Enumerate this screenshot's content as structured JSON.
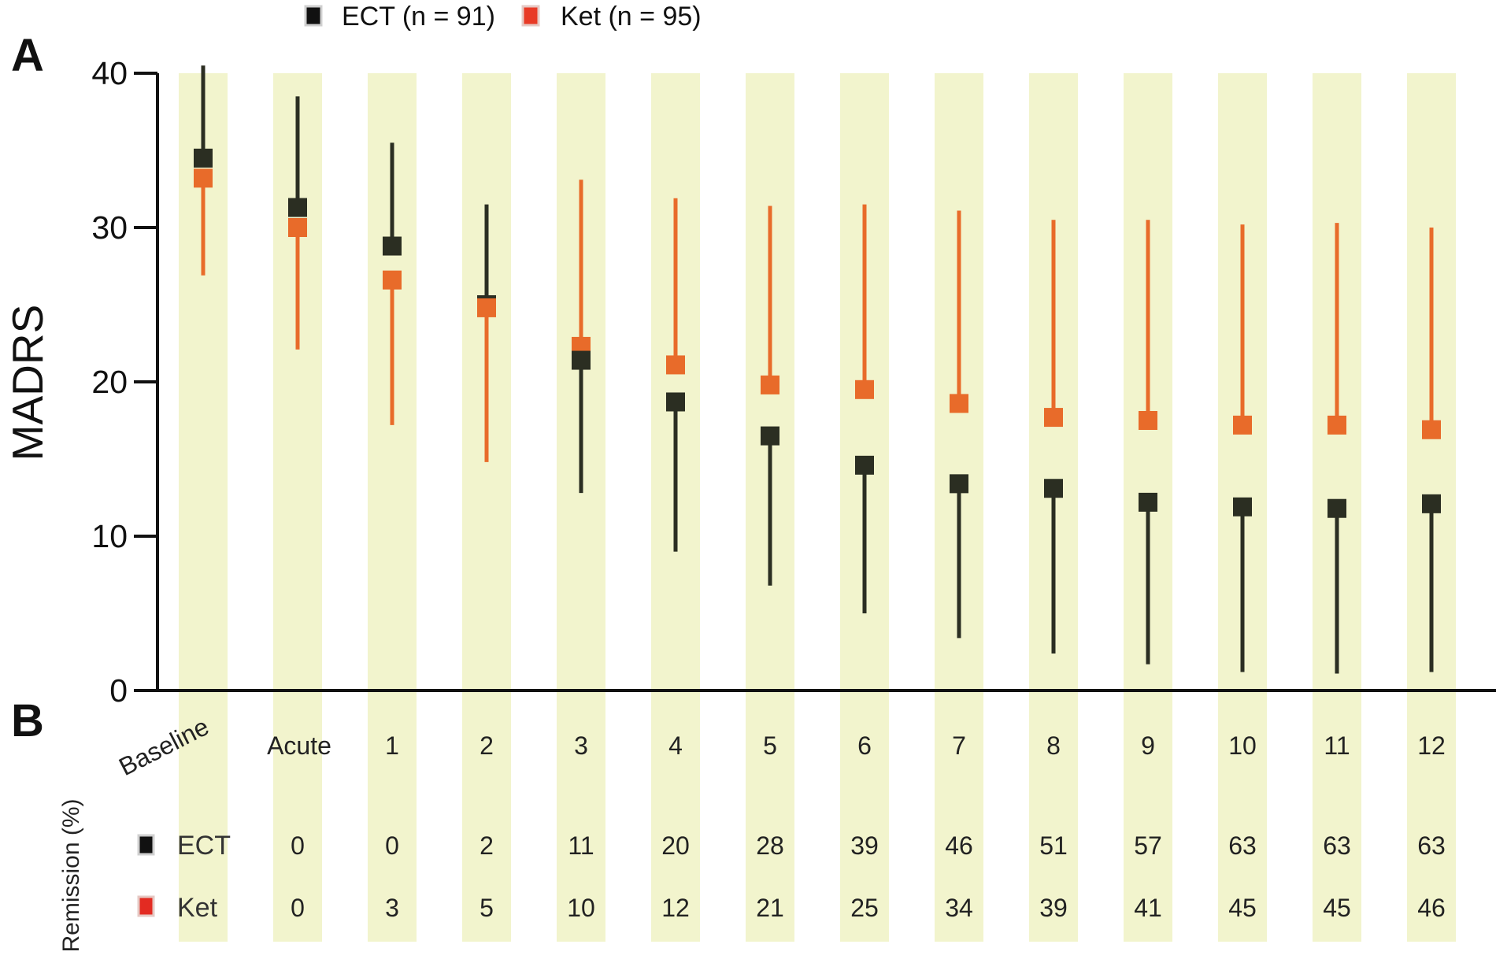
{
  "panels": {
    "a": "A",
    "b": "B"
  },
  "legend": [
    {
      "label": "ECT (n = 91)",
      "color": "#2b2e22"
    },
    {
      "label": "Ket (n = 95)",
      "color": "#e83a26"
    }
  ],
  "chart_data": {
    "type": "scatter",
    "ylabel": "MADRS",
    "ylim": [
      0,
      40
    ],
    "yticks": [
      "0",
      "10",
      "20",
      "30",
      "40"
    ],
    "categories": [
      "Baseline",
      "Acute",
      "1",
      "2",
      "3",
      "4",
      "5",
      "6",
      "7",
      "8",
      "9",
      "10",
      "11",
      "12"
    ],
    "band_color": "#f2f4cd",
    "series": [
      {
        "name": "ECT (n = 91)",
        "color": "#2b2e22",
        "values": [
          34.5,
          31.3,
          28.8,
          25.0,
          21.4,
          18.7,
          16.5,
          14.6,
          13.4,
          13.1,
          12.2,
          11.9,
          11.8,
          12.1
        ],
        "upper": [
          40.5,
          38.5,
          35.5,
          31.5,
          null,
          null,
          null,
          null,
          null,
          null,
          null,
          null,
          null,
          null
        ],
        "lower": [
          null,
          null,
          null,
          25.0,
          12.8,
          9.0,
          6.8,
          5.0,
          3.4,
          2.4,
          1.7,
          1.2,
          1.1,
          1.2
        ]
      },
      {
        "name": "Ket (n = 95)",
        "color": "#e86b2a",
        "values": [
          33.2,
          30.0,
          26.6,
          24.8,
          22.3,
          21.1,
          19.8,
          19.5,
          18.6,
          17.7,
          17.5,
          17.2,
          17.2,
          16.9
        ],
        "upper": [
          null,
          null,
          null,
          null,
          33.1,
          31.9,
          31.4,
          31.5,
          31.1,
          30.5,
          30.5,
          30.2,
          30.3,
          30.0
        ],
        "lower": [
          26.9,
          22.1,
          17.2,
          14.8,
          null,
          null,
          null,
          null,
          null,
          null,
          null,
          null,
          null,
          null
        ]
      }
    ],
    "remission": {
      "axis_label": "Remission (%)",
      "rows": [
        {
          "label": "ECT",
          "color": "#111111",
          "values": [
            "",
            "0",
            "0",
            "2",
            "11",
            "20",
            "28",
            "39",
            "46",
            "51",
            "57",
            "63",
            "63",
            "63"
          ]
        },
        {
          "label": "Ket",
          "color": "#e32b22",
          "values": [
            "",
            "0",
            "3",
            "5",
            "10",
            "12",
            "21",
            "25",
            "34",
            "39",
            "41",
            "45",
            "45",
            "46"
          ]
        }
      ]
    }
  }
}
